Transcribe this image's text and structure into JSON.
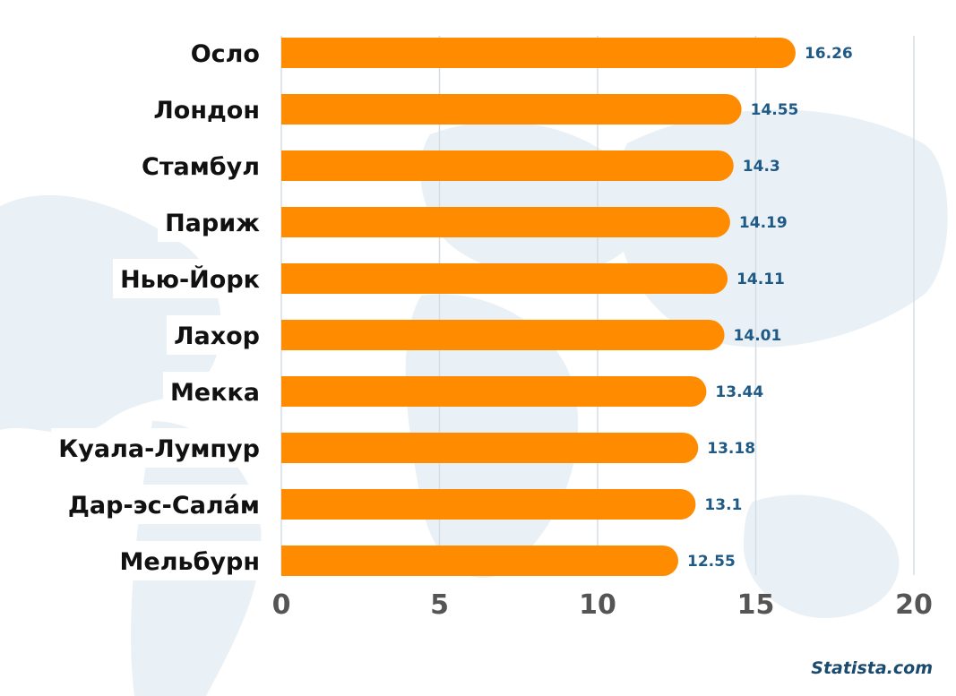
{
  "chart_data": {
    "type": "bar",
    "orientation": "horizontal",
    "categories": [
      "Осло",
      "Лондон",
      "Стамбул",
      "Париж",
      "Нью-Йорк",
      "Лахор",
      "Мекка",
      "Куала-Лумпур",
      "Дар-эс-Сала́м",
      "Мельбурн"
    ],
    "values": [
      16.26,
      14.55,
      14.3,
      14.19,
      14.11,
      14.01,
      13.44,
      13.18,
      13.1,
      12.55
    ],
    "value_labels": [
      "16.26",
      "14.55",
      "14.3",
      "14.19",
      "14.11",
      "14.01",
      "13.44",
      "13.18",
      "13.1",
      "12.55"
    ],
    "xlim": [
      0,
      20
    ],
    "xticks": [
      "0",
      "5",
      "10",
      "15",
      "20"
    ],
    "grid": true,
    "title": "",
    "xlabel": "",
    "ylabel": ""
  },
  "source": "Statista.com",
  "colors": {
    "bar": "#ff8c00",
    "value_label": "#1f5a86",
    "gridline": "#d5dde3",
    "map_background": "#e7eff4",
    "label_background": "#ffffff"
  }
}
